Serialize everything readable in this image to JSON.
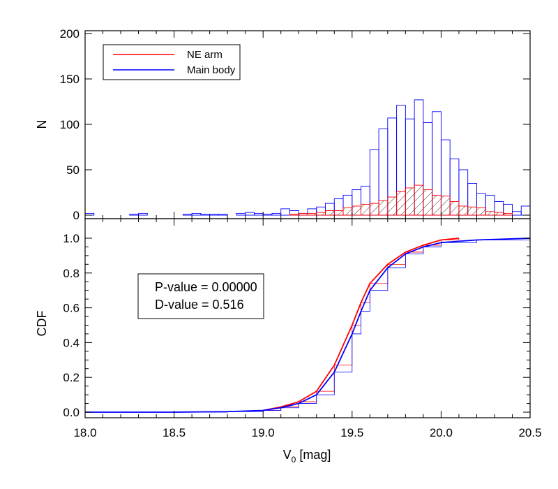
{
  "chart_data": [
    {
      "type": "bar",
      "panel": "histogram",
      "xlabel": "",
      "ylabel": "N",
      "xlim": [
        18.0,
        20.5
      ],
      "ylim": [
        0,
        200
      ],
      "yticks": [
        0,
        50,
        100,
        150,
        200
      ],
      "bin_width": 0.05,
      "bin_start": 18.0,
      "legend": {
        "placement": "top-left",
        "entries": [
          {
            "label": "NE arm",
            "color": "#ff0000"
          },
          {
            "label": "Main body",
            "color": "#0000ff"
          }
        ]
      },
      "series": [
        {
          "name": "Main body",
          "color": "#0000ff",
          "style": "step-outline",
          "values": [
            2,
            0,
            0,
            0,
            0,
            1,
            2,
            0,
            0,
            0,
            0,
            1,
            2,
            1,
            1,
            1,
            0,
            2,
            3,
            2,
            1,
            2,
            7,
            5,
            2,
            7,
            9,
            13,
            18,
            22,
            28,
            32,
            72,
            95,
            107,
            121,
            106,
            127,
            102,
            114,
            83,
            62,
            50,
            35,
            24,
            22,
            15,
            12,
            4,
            10
          ]
        },
        {
          "name": "NE arm",
          "color": "#ff0000",
          "style": "step-outline-hatched",
          "values": [
            0,
            0,
            0,
            0,
            0,
            0,
            0,
            0,
            0,
            0,
            0,
            0,
            0,
            0,
            0,
            0,
            0,
            0,
            0,
            0,
            0,
            0,
            0,
            1,
            2,
            2,
            3,
            5,
            5,
            8,
            10,
            12,
            13,
            16,
            20,
            26,
            30,
            33,
            28,
            22,
            21,
            15,
            10,
            9,
            8,
            4,
            3,
            2,
            0,
            0
          ]
        }
      ]
    },
    {
      "type": "line",
      "panel": "cdf",
      "xlabel": "V",
      "xlabel_sub": "0",
      "xlabel_unit": " [mag]",
      "ylabel": "CDF",
      "xlim": [
        18.0,
        20.5
      ],
      "ylim": [
        0,
        1.05
      ],
      "xticks": [
        "18.0",
        "18.5",
        "19.0",
        "19.5",
        "20.0",
        "20.5"
      ],
      "yticks": [
        "0.0",
        "0.2",
        "0.4",
        "0.6",
        "0.8",
        "1.0"
      ],
      "annotation": {
        "p_value": "P-value = 0.00000",
        "d_value": "D-value = 0.516"
      },
      "series": [
        {
          "name": "NE arm",
          "color": "#ff0000",
          "points": [
            [
              19.0,
              0.01
            ],
            [
              19.1,
              0.03
            ],
            [
              19.2,
              0.06
            ],
            [
              19.3,
              0.12
            ],
            [
              19.4,
              0.27
            ],
            [
              19.5,
              0.5
            ],
            [
              19.55,
              0.63
            ],
            [
              19.6,
              0.74
            ],
            [
              19.7,
              0.85
            ],
            [
              19.8,
              0.92
            ],
            [
              19.9,
              0.96
            ],
            [
              20.0,
              0.99
            ],
            [
              20.1,
              1.0
            ]
          ]
        },
        {
          "name": "Main body",
          "color": "#0000ff",
          "points": [
            [
              18.0,
              0.0
            ],
            [
              18.5,
              0.0
            ],
            [
              18.8,
              0.003
            ],
            [
              19.0,
              0.01
            ],
            [
              19.1,
              0.025
            ],
            [
              19.2,
              0.05
            ],
            [
              19.3,
              0.1
            ],
            [
              19.4,
              0.23
            ],
            [
              19.5,
              0.45
            ],
            [
              19.55,
              0.58
            ],
            [
              19.6,
              0.7
            ],
            [
              19.7,
              0.83
            ],
            [
              19.8,
              0.91
            ],
            [
              19.9,
              0.95
            ],
            [
              20.0,
              0.975
            ],
            [
              20.2,
              0.99
            ],
            [
              20.5,
              1.0
            ]
          ]
        }
      ]
    }
  ]
}
